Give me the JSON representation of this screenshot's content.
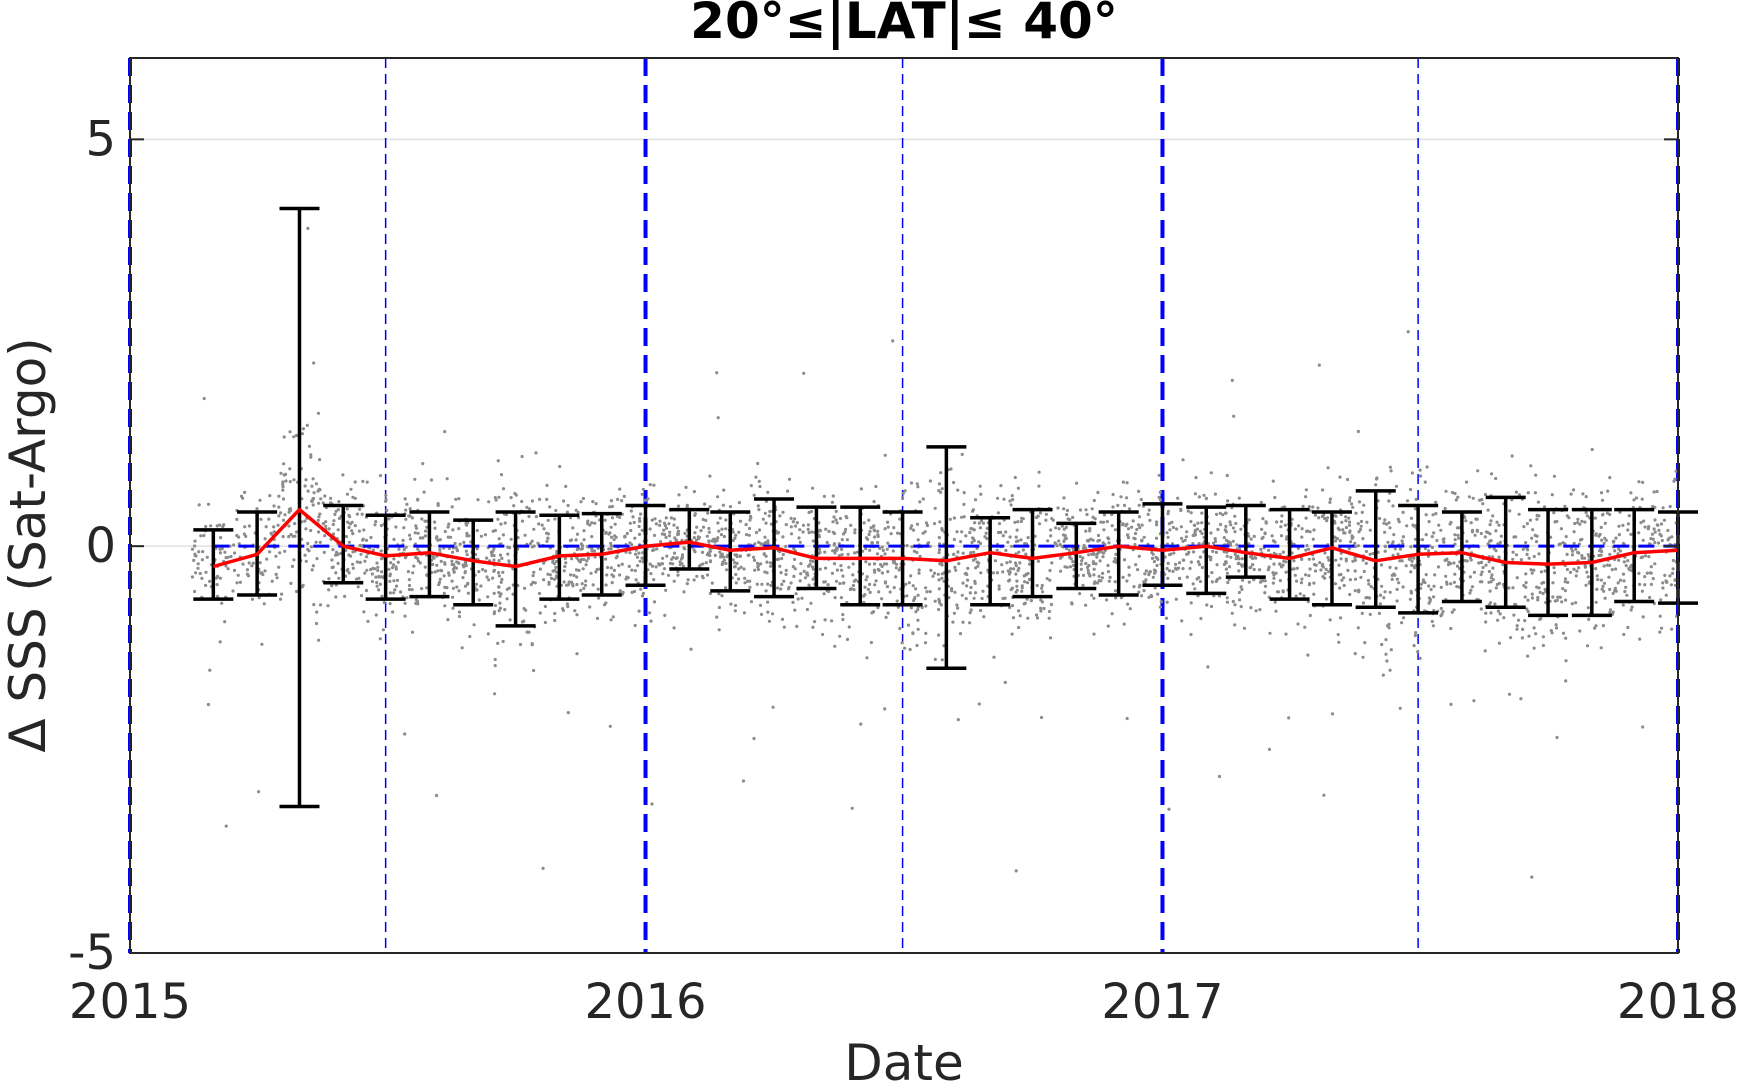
{
  "chart_data": {
    "type": "scatter",
    "title": "20°≤|LAT|≤ 40°",
    "xlabel": "Date",
    "ylabel": "Δ SSS (Sat-Argo)",
    "xlim": [
      "2015-01-01",
      "2018-01-01"
    ],
    "ylim": [
      -5,
      6
    ],
    "xticks": [
      "2015",
      "2016",
      "2017",
      "2018"
    ],
    "yticks": [
      -5,
      0,
      5
    ],
    "grid": "horizontal",
    "reference_line": 0,
    "vertical_lines": {
      "major": [
        "2015-01-01",
        "2016-01-01",
        "2017-01-01",
        "2018-01-01"
      ],
      "minor": [
        "2015-07-01",
        "2016-07-01",
        "2017-07-01"
      ]
    },
    "colors": {
      "points": "#8c8c8c",
      "mean_line": "#ff0000",
      "error_bars": "#000000",
      "vertical_lines": "#0000ff",
      "reference_line": "#0000ff",
      "grid": "#e0e0e0"
    },
    "series": [
      {
        "type": "line_with_errorbars",
        "x": [
          "2015-03-01",
          "2015-04-01",
          "2015-05-01",
          "2015-06-01",
          "2015-07-01",
          "2015-08-01",
          "2015-09-01",
          "2015-10-01",
          "2015-11-01",
          "2015-12-01",
          "2016-01-01",
          "2016-02-01",
          "2016-03-01",
          "2016-04-01",
          "2016-05-01",
          "2016-06-01",
          "2016-07-01",
          "2016-08-01",
          "2016-09-01",
          "2016-10-01",
          "2016-11-01",
          "2016-12-01",
          "2017-01-01",
          "2017-02-01",
          "2017-03-01",
          "2017-04-01",
          "2017-05-01",
          "2017-06-01",
          "2017-07-01",
          "2017-08-01",
          "2017-09-01",
          "2017-10-01",
          "2017-11-01",
          "2017-12-01",
          "2018-01-01"
        ],
        "mean": [
          -0.25,
          -0.1,
          0.45,
          0.0,
          -0.12,
          -0.08,
          -0.18,
          -0.25,
          -0.12,
          -0.1,
          0.0,
          0.05,
          -0.05,
          -0.02,
          -0.15,
          -0.15,
          -0.15,
          -0.18,
          -0.08,
          -0.15,
          -0.08,
          0.0,
          -0.05,
          0.0,
          -0.08,
          -0.15,
          -0.02,
          -0.18,
          -0.1,
          -0.08,
          -0.2,
          -0.22,
          -0.2,
          -0.08,
          -0.05
        ],
        "err_low": [
          -0.65,
          -0.6,
          -3.2,
          -0.45,
          -0.65,
          -0.62,
          -0.72,
          -0.98,
          -0.65,
          -0.6,
          -0.48,
          -0.28,
          -0.55,
          -0.62,
          -0.52,
          -0.72,
          -0.72,
          -1.5,
          -0.72,
          -0.62,
          -0.52,
          -0.6,
          -0.48,
          -0.58,
          -0.38,
          -0.65,
          -0.72,
          -0.75,
          -0.82,
          -0.68,
          -0.75,
          -0.85,
          -0.85,
          -0.68,
          -0.7
        ],
        "err_high": [
          0.2,
          0.42,
          4.15,
          0.5,
          0.38,
          0.42,
          0.32,
          0.42,
          0.38,
          0.4,
          0.5,
          0.45,
          0.42,
          0.58,
          0.48,
          0.48,
          0.42,
          1.22,
          0.35,
          0.45,
          0.28,
          0.42,
          0.52,
          0.48,
          0.5,
          0.45,
          0.42,
          0.68,
          0.5,
          0.42,
          0.6,
          0.45,
          0.45,
          0.45,
          0.42
        ]
      }
    ]
  }
}
